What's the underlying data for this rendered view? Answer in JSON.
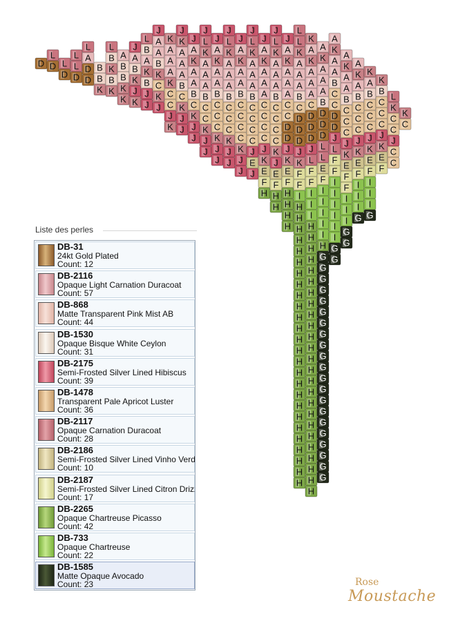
{
  "panel": {
    "title": "Liste des perles"
  },
  "beads": [
    {
      "letter": "D",
      "code": "DB-31",
      "name": "24kt Gold Plated",
      "count": "Count: 12",
      "color": "#8c5a2a",
      "light": "#d7b27a"
    },
    {
      "letter": "A",
      "code": "DB-2116",
      "name": "Opaque Light Carnation Duracoat",
      "count": "Count: 57",
      "color": "#c7868c",
      "light": "#f0c8cb"
    },
    {
      "letter": "B",
      "code": "DB-868",
      "name": "Matte Transparent Pink Mist AB",
      "count": "Count: 44",
      "color": "#e0b3a5",
      "light": "#f7e1d8"
    },
    {
      "letter": "C",
      "code": "DB-1530",
      "name": "Opaque Bisque White Ceylon",
      "count": "Count: 31",
      "color": "#dcc9b8",
      "light": "#fbf6f0"
    },
    {
      "letter": "J",
      "code": "DB-2175",
      "name": "Semi-Frosted Silver Lined Hibiscus",
      "count": "Count: 39",
      "color": "#c0465c",
      "light": "#ef9aa8"
    },
    {
      "letter": "C",
      "code": "DB-1478",
      "name": "Transparent Pale Apricot Luster",
      "count": "Count: 36",
      "color": "#c79b68",
      "light": "#f3d7b0"
    },
    {
      "letter": "K",
      "code": "DB-2117",
      "name": "Opaque Carnation Duracoat",
      "count": "Count: 28",
      "color": "#b5616a",
      "light": "#e3a2a8"
    },
    {
      "letter": "E",
      "code": "DB-2186",
      "name": "Semi-Frosted Silver Lined Vinho Verde",
      "count": "Count: 10",
      "color": "#c2b37e",
      "light": "#efe6c2"
    },
    {
      "letter": "F",
      "code": "DB-2187",
      "name": "Semi-Frosted Silver Lined Citron Drizzle",
      "count": "Count: 17",
      "color": "#d0d08a",
      "light": "#f6f6cf"
    },
    {
      "letter": "H",
      "code": "DB-2265",
      "name": "Opaque Chartreuse Picasso",
      "count": "Count: 42",
      "color": "#6e9a36",
      "light": "#b5d67c"
    },
    {
      "letter": "I",
      "code": "DB-733",
      "name": "Opaque Chartreuse",
      "count": "Count: 22",
      "color": "#7ab43a",
      "light": "#c6e88e"
    },
    {
      "letter": "G",
      "code": "DB-1585",
      "name": "Matte Opaque Avocado",
      "count": "Count: 23",
      "color": "#1e2616",
      "light": "#4a5836"
    }
  ],
  "pattern": {
    "colors": {
      "A": "#e6b9ba",
      "B": "#efd3c8",
      "C": "#e5c49b",
      "D": "#a56f34",
      "E": "#cfc28e",
      "F": "#dedc9c",
      "G": "#232a1b",
      "H": "#7ea848",
      "I": "#8cc34f",
      "J": "#c9566c",
      "K": "#c88086",
      "L": "#c9747f"
    },
    "text_colors": {
      "G": "#ffffff"
    }
  },
  "logo": {
    "top": "Rose",
    "bottom": "Moustache"
  }
}
